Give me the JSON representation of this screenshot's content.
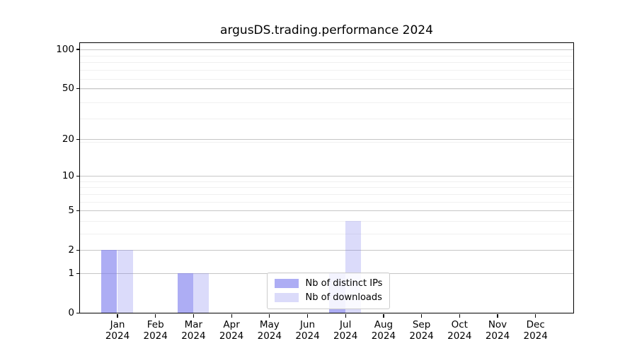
{
  "chart_data": {
    "type": "bar",
    "title": "argusDS.trading.performance 2024",
    "categories": [
      "Jan",
      "Feb",
      "Mar",
      "Apr",
      "May",
      "Jun",
      "Jul",
      "Aug",
      "Sep",
      "Oct",
      "Nov",
      "Dec"
    ],
    "year": "2024",
    "series": [
      {
        "name": "Nb of distinct IPs",
        "color": "#7a7aee",
        "alpha": 0.62,
        "values": [
          2,
          0,
          1,
          0,
          0,
          0,
          1,
          0,
          0,
          0,
          0,
          0
        ]
      },
      {
        "name": "Nb of downloads",
        "color": "#7a7aee",
        "alpha": 0.27,
        "values": [
          2,
          0,
          1,
          0,
          0,
          0,
          4,
          0,
          0,
          0,
          0,
          0
        ]
      }
    ],
    "yscale": "log1p",
    "y_ticks": [
      0,
      1,
      2,
      5,
      10,
      20,
      50,
      100
    ],
    "ylim": [
      0,
      112
    ],
    "grid": true,
    "legend_position": "lower center"
  },
  "colors": {
    "background": "#ffffff",
    "spine": "#000000",
    "grid_major": "#c6c6c6",
    "grid_minor": "#f0f0f0",
    "text": "#000000",
    "legend_border": "#cccccc"
  }
}
